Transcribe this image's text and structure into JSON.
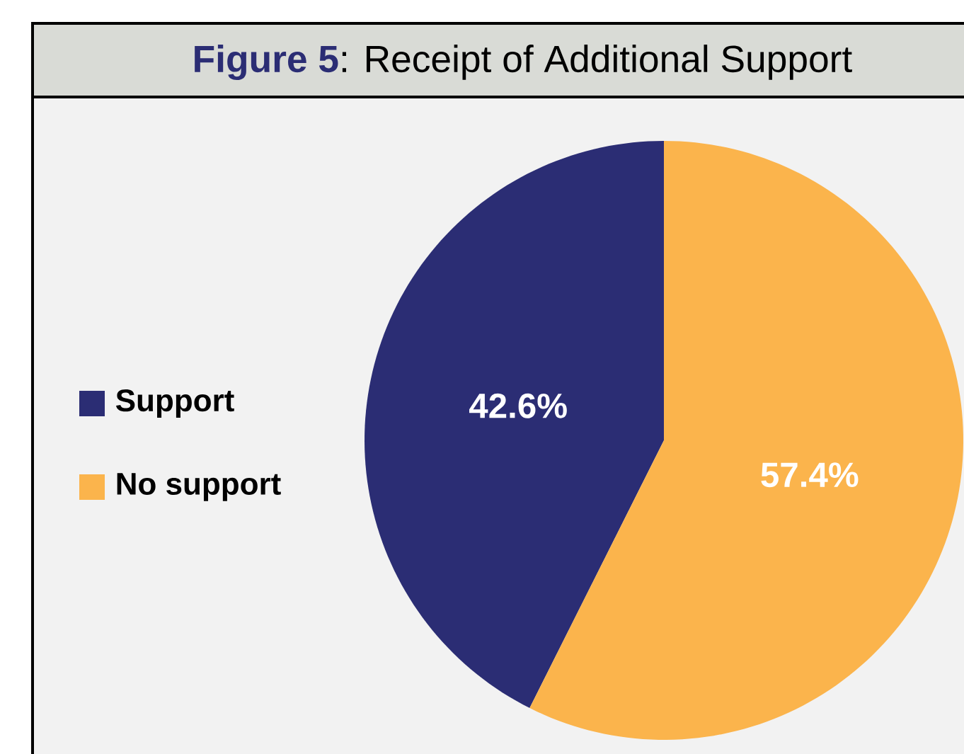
{
  "chart_data": {
    "type": "pie",
    "title": "**Figure 5**: Receipt of Additional Support",
    "categories": [
      "Support",
      "No support"
    ],
    "values": [
      42.6,
      57.4
    ],
    "colors": [
      "#2b2d74",
      "#fbb44c"
    ],
    "value_labels": [
      "42.6%",
      "57.4%"
    ],
    "legend": "left"
  }
}
